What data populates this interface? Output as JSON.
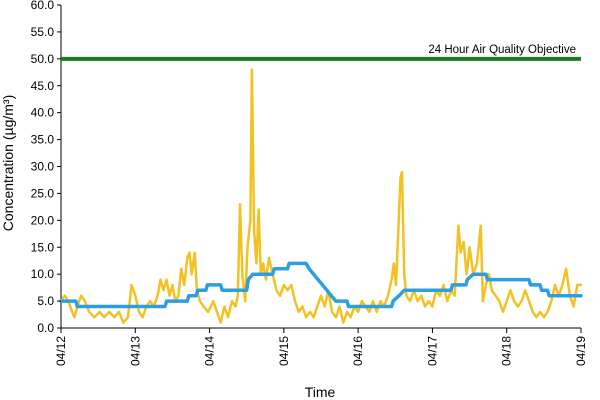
{
  "chart_data": {
    "type": "line",
    "xlabel": "Time",
    "ylabel": "Concentration (µg/m³)",
    "ylim": [
      0,
      60
    ],
    "yticks": [
      "0.0",
      "5.0",
      "10.0",
      "15.0",
      "20.0",
      "25.0",
      "30.0",
      "35.0",
      "40.0",
      "45.0",
      "50.0",
      "55.0",
      "60.0"
    ],
    "xlim": [
      "04/12",
      "04/19"
    ],
    "xticks": [
      "04/12",
      "04/13",
      "04/14",
      "04/15",
      "04/16",
      "04/17",
      "04/18",
      "04/19"
    ],
    "grid": false,
    "objective": {
      "label": "24 Hour Air Quality Objective",
      "value": 50,
      "color": "#1e7a1e"
    },
    "series": [
      {
        "style": "hourly",
        "color": "#f2c224",
        "points": [
          [
            0.0,
            5.0
          ],
          [
            0.05,
            6.0
          ],
          [
            0.1,
            5.0
          ],
          [
            0.15,
            3.0
          ],
          [
            0.18,
            2.0
          ],
          [
            0.22,
            4.0
          ],
          [
            0.27,
            6.0
          ],
          [
            0.32,
            5.0
          ],
          [
            0.38,
            3.0
          ],
          [
            0.45,
            2.0
          ],
          [
            0.52,
            3.0
          ],
          [
            0.58,
            2.0
          ],
          [
            0.65,
            3.0
          ],
          [
            0.72,
            2.0
          ],
          [
            0.78,
            3.0
          ],
          [
            0.84,
            1.0
          ],
          [
            0.9,
            2.0
          ],
          [
            0.95,
            8.0
          ],
          [
            1.0,
            6.0
          ],
          [
            1.05,
            3.0
          ],
          [
            1.1,
            2.0
          ],
          [
            1.15,
            4.0
          ],
          [
            1.2,
            5.0
          ],
          [
            1.25,
            4.0
          ],
          [
            1.3,
            6.0
          ],
          [
            1.34,
            9.0
          ],
          [
            1.38,
            7.0
          ],
          [
            1.42,
            9.0
          ],
          [
            1.46,
            6.0
          ],
          [
            1.5,
            8.0
          ],
          [
            1.54,
            5.0
          ],
          [
            1.58,
            6.0
          ],
          [
            1.62,
            11.0
          ],
          [
            1.66,
            8.0
          ],
          [
            1.7,
            13.0
          ],
          [
            1.73,
            14.0
          ],
          [
            1.76,
            10.0
          ],
          [
            1.8,
            14.0
          ],
          [
            1.83,
            7.0
          ],
          [
            1.87,
            5.0
          ],
          [
            1.92,
            4.0
          ],
          [
            1.98,
            3.0
          ],
          [
            2.05,
            5.0
          ],
          [
            2.1,
            3.0
          ],
          [
            2.15,
            1.0
          ],
          [
            2.2,
            4.0
          ],
          [
            2.25,
            2.0
          ],
          [
            2.3,
            5.0
          ],
          [
            2.35,
            4.0
          ],
          [
            2.38,
            6.0
          ],
          [
            2.41,
            23.0
          ],
          [
            2.44,
            10.0
          ],
          [
            2.48,
            5.0
          ],
          [
            2.51,
            15.0
          ],
          [
            2.55,
            20.0
          ],
          [
            2.57,
            48.0
          ],
          [
            2.6,
            18.0
          ],
          [
            2.63,
            12.0
          ],
          [
            2.66,
            22.0
          ],
          [
            2.69,
            10.0
          ],
          [
            2.72,
            12.0
          ],
          [
            2.76,
            9.0
          ],
          [
            2.8,
            13.0
          ],
          [
            2.85,
            10.0
          ],
          [
            2.9,
            7.0
          ],
          [
            2.95,
            6.0
          ],
          [
            3.0,
            8.0
          ],
          [
            3.05,
            7.0
          ],
          [
            3.1,
            8.0
          ],
          [
            3.15,
            5.0
          ],
          [
            3.2,
            3.0
          ],
          [
            3.25,
            4.0
          ],
          [
            3.3,
            2.0
          ],
          [
            3.35,
            3.0
          ],
          [
            3.4,
            2.0
          ],
          [
            3.45,
            4.0
          ],
          [
            3.5,
            6.0
          ],
          [
            3.55,
            4.0
          ],
          [
            3.6,
            7.0
          ],
          [
            3.65,
            3.0
          ],
          [
            3.7,
            2.0
          ],
          [
            3.75,
            4.0
          ],
          [
            3.8,
            1.0
          ],
          [
            3.85,
            3.0
          ],
          [
            3.9,
            2.0
          ],
          [
            3.95,
            4.0
          ],
          [
            4.0,
            3.0
          ],
          [
            4.05,
            5.0
          ],
          [
            4.1,
            4.0
          ],
          [
            4.15,
            3.0
          ],
          [
            4.2,
            5.0
          ],
          [
            4.25,
            3.0
          ],
          [
            4.3,
            5.0
          ],
          [
            4.35,
            4.0
          ],
          [
            4.4,
            6.0
          ],
          [
            4.45,
            9.0
          ],
          [
            4.48,
            12.0
          ],
          [
            4.51,
            8.0
          ],
          [
            4.54,
            18.0
          ],
          [
            4.57,
            28.0
          ],
          [
            4.59,
            29.0
          ],
          [
            4.62,
            10.0
          ],
          [
            4.65,
            6.0
          ],
          [
            4.7,
            5.0
          ],
          [
            4.75,
            7.0
          ],
          [
            4.8,
            5.0
          ],
          [
            4.85,
            6.0
          ],
          [
            4.9,
            4.0
          ],
          [
            4.95,
            5.0
          ],
          [
            5.0,
            4.0
          ],
          [
            5.05,
            7.0
          ],
          [
            5.1,
            6.0
          ],
          [
            5.15,
            8.0
          ],
          [
            5.2,
            5.0
          ],
          [
            5.25,
            7.0
          ],
          [
            5.3,
            6.0
          ],
          [
            5.35,
            19.0
          ],
          [
            5.38,
            14.0
          ],
          [
            5.42,
            16.0
          ],
          [
            5.46,
            10.0
          ],
          [
            5.5,
            15.0
          ],
          [
            5.55,
            10.0
          ],
          [
            5.6,
            12.0
          ],
          [
            5.65,
            19.0
          ],
          [
            5.68,
            5.0
          ],
          [
            5.72,
            8.0
          ],
          [
            5.76,
            10.0
          ],
          [
            5.8,
            7.0
          ],
          [
            5.85,
            6.0
          ],
          [
            5.9,
            5.0
          ],
          [
            5.95,
            3.0
          ],
          [
            6.0,
            5.0
          ],
          [
            6.05,
            7.0
          ],
          [
            6.1,
            5.0
          ],
          [
            6.15,
            4.0
          ],
          [
            6.2,
            5.0
          ],
          [
            6.25,
            7.0
          ],
          [
            6.3,
            5.0
          ],
          [
            6.35,
            3.0
          ],
          [
            6.4,
            2.0
          ],
          [
            6.45,
            3.0
          ],
          [
            6.5,
            2.0
          ],
          [
            6.55,
            3.0
          ],
          [
            6.6,
            5.0
          ],
          [
            6.65,
            8.0
          ],
          [
            6.7,
            6.0
          ],
          [
            6.75,
            8.0
          ],
          [
            6.8,
            11.0
          ],
          [
            6.85,
            6.0
          ],
          [
            6.9,
            4.0
          ],
          [
            6.95,
            8.0
          ],
          [
            7.0,
            8.0
          ]
        ]
      },
      {
        "style": "24-hour rolling",
        "color": "#2c9fe0",
        "points": [
          [
            0.0,
            5.0
          ],
          [
            0.2,
            5.0
          ],
          [
            0.22,
            4.0
          ],
          [
            1.4,
            4.0
          ],
          [
            1.42,
            5.0
          ],
          [
            1.7,
            5.0
          ],
          [
            1.72,
            6.0
          ],
          [
            1.82,
            6.0
          ],
          [
            1.84,
            7.0
          ],
          [
            1.95,
            7.0
          ],
          [
            1.97,
            8.0
          ],
          [
            2.15,
            8.0
          ],
          [
            2.17,
            7.0
          ],
          [
            2.5,
            7.0
          ],
          [
            2.52,
            9.0
          ],
          [
            2.58,
            10.0
          ],
          [
            2.85,
            10.0
          ],
          [
            2.87,
            11.0
          ],
          [
            3.05,
            11.0
          ],
          [
            3.07,
            12.0
          ],
          [
            3.3,
            12.0
          ],
          [
            3.34,
            11.0
          ],
          [
            3.4,
            10.0
          ],
          [
            3.46,
            9.0
          ],
          [
            3.52,
            8.0
          ],
          [
            3.58,
            7.0
          ],
          [
            3.64,
            6.0
          ],
          [
            3.7,
            5.0
          ],
          [
            3.85,
            5.0
          ],
          [
            3.87,
            4.0
          ],
          [
            4.45,
            4.0
          ],
          [
            4.47,
            5.0
          ],
          [
            4.55,
            6.0
          ],
          [
            4.62,
            7.0
          ],
          [
            5.25,
            7.0
          ],
          [
            5.27,
            8.0
          ],
          [
            5.45,
            8.0
          ],
          [
            5.47,
            9.0
          ],
          [
            5.55,
            10.0
          ],
          [
            5.72,
            10.0
          ],
          [
            5.74,
            9.0
          ],
          [
            6.3,
            9.0
          ],
          [
            6.32,
            8.0
          ],
          [
            6.45,
            8.0
          ],
          [
            6.47,
            7.0
          ],
          [
            6.55,
            7.0
          ],
          [
            6.57,
            6.0
          ],
          [
            7.0,
            6.0
          ]
        ]
      }
    ]
  }
}
